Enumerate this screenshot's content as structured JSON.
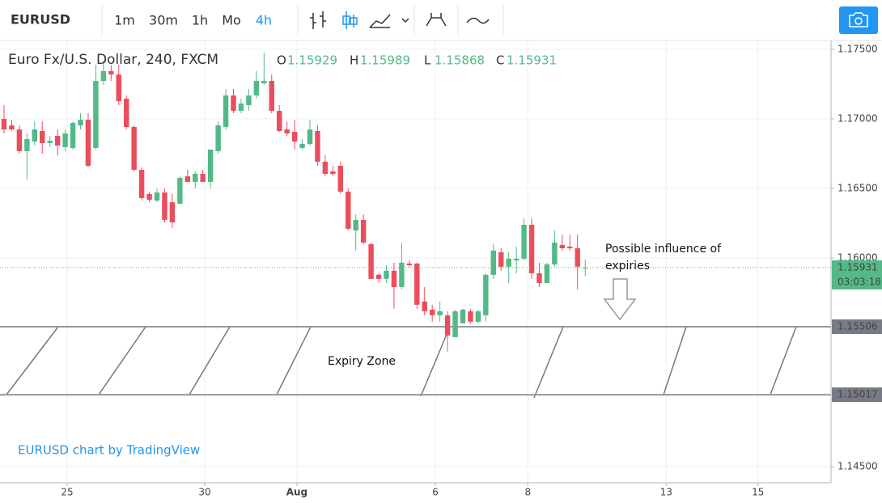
{
  "toolbar": {
    "symbol": "EURUSD",
    "intervals": [
      "1m",
      "30m",
      "1h",
      "Mo",
      "4h"
    ],
    "active": 4
  },
  "chart_data": {
    "type": "candlestick",
    "title": "Euro Fx/U.S. Dollar, 240, FXCM",
    "ohlc": [
      {
        "label": "O",
        "value": 1.15929
      },
      {
        "label": "H",
        "value": 1.15989
      },
      {
        "label": "L",
        "value": 1.15868
      },
      {
        "label": "C",
        "value": 1.15931
      }
    ],
    "up_color": "#53b987",
    "down_color": "#eb4d5c",
    "open": [
      1.17,
      1.16953,
      1.16924,
      1.16768,
      1.16837,
      1.16913,
      1.16826,
      1.16878,
      1.16797,
      1.16791,
      1.16953,
      1.16994,
      1.16791,
      1.17273,
      1.17343,
      1.17319,
      1.17145,
      1.16942,
      1.16634,
      1.1646,
      1.16413,
      1.16471,
      1.16401,
      1.1639,
      1.16587,
      1.16547,
      1.16605,
      1.16547,
      1.16768,
      1.16942,
      1.17168,
      1.17058,
      1.17099,
      1.17168,
      1.17256,
      1.17273,
      1.17058,
      1.16924,
      1.16907,
      1.16791,
      1.1682,
      1.16913,
      1.16692,
      1.16622,
      1.16663,
      1.16477,
      1.16198,
      1.16274,
      1.16099,
      1.15879,
      1.1585,
      1.15908,
      1.15791,
      1.1596,
      1.1596,
      1.15687,
      1.15629,
      1.15588,
      1.15588,
      1.15431,
      1.1553,
      1.15617,
      1.15542,
      1.15588,
      1.15879,
      1.16041,
      1.15937,
      1.15983,
      1.15995,
      1.16239,
      1.1589,
      1.1582,
      1.15954,
      1.16094,
      1.16082,
      1.1607,
      1.15929
    ],
    "high": [
      1.17099,
      1.16994,
      1.16953,
      1.16895,
      1.16982,
      1.16982,
      1.16878,
      1.16924,
      1.16924,
      1.16982,
      1.17041,
      1.17041,
      1.17389,
      1.17418,
      1.17389,
      1.17389,
      1.17168,
      1.16953,
      1.16651,
      1.16477,
      1.165,
      1.165,
      1.1646,
      1.16587,
      1.16634,
      1.16622,
      1.16634,
      1.16779,
      1.16982,
      1.17215,
      1.17215,
      1.17145,
      1.17215,
      1.17343,
      1.17476,
      1.17319,
      1.17099,
      1.16982,
      1.16994,
      1.16855,
      1.16994,
      1.16953,
      1.16738,
      1.16663,
      1.16692,
      1.165,
      1.16314,
      1.16314,
      1.16111,
      1.1589,
      1.15948,
      1.15966,
      1.16111,
      1.15983,
      1.15966,
      1.15791,
      1.15664,
      1.15687,
      1.15617,
      1.15629,
      1.15635,
      1.15635,
      1.15629,
      1.1589,
      1.16099,
      1.1607,
      1.16041,
      1.16082,
      1.16285,
      1.16285,
      1.15966,
      1.15966,
      1.16198,
      1.16169,
      1.16169,
      1.16169,
      1.15989
    ],
    "low": [
      1.16895,
      1.16913,
      1.1675,
      1.16564,
      1.16808,
      1.1675,
      1.16797,
      1.16738,
      1.16768,
      1.16779,
      1.16924,
      1.16651,
      1.16779,
      1.17244,
      1.17273,
      1.17099,
      1.16924,
      1.16622,
      1.16413,
      1.16401,
      1.16401,
      1.16256,
      1.16216,
      1.1639,
      1.16547,
      1.165,
      1.16547,
      1.165,
      1.1675,
      1.16924,
      1.17041,
      1.17041,
      1.17058,
      1.17145,
      1.17244,
      1.17041,
      1.16907,
      1.16878,
      1.16779,
      1.16779,
      1.16808,
      1.16663,
      1.16587,
      1.16587,
      1.1646,
      1.16198,
      1.16053,
      1.16099,
      1.1585,
      1.1582,
      1.1582,
      1.15635,
      1.15774,
      1.15937,
      1.15635,
      1.15588,
      1.15542,
      1.15542,
      1.15327,
      1.15431,
      1.1553,
      1.1553,
      1.1553,
      1.15542,
      1.1585,
      1.15908,
      1.1582,
      1.1589,
      1.15983,
      1.1585,
      1.15791,
      1.1582,
      1.15937,
      1.16053,
      1.16053,
      1.15774,
      1.15868
    ],
    "close": [
      1.16924,
      1.16924,
      1.16768,
      1.16855,
      1.16924,
      1.16826,
      1.16843,
      1.16808,
      1.16895,
      1.16971,
      1.16994,
      1.16663,
      1.17273,
      1.17343,
      1.17319,
      1.17128,
      1.16942,
      1.16634,
      1.16431,
      1.16419,
      1.16471,
      1.16274,
      1.16256,
      1.16576,
      1.16547,
      1.16605,
      1.16547,
      1.16779,
      1.16953,
      1.17168,
      1.17058,
      1.1711,
      1.17168,
      1.17273,
      1.17273,
      1.17058,
      1.16913,
      1.16895,
      1.16837,
      1.1682,
      1.16924,
      1.16692,
      1.16605,
      1.16605,
      1.16477,
      1.1621,
      1.16274,
      1.16111,
      1.1585,
      1.1585,
      1.15908,
      1.15791,
      1.15966,
      1.15948,
      1.15664,
      1.15617,
      1.15588,
      1.15617,
      1.15443,
      1.15617,
      1.15629,
      1.15542,
      1.15617,
      1.15879,
      1.16053,
      1.15937,
      1.15995,
      1.15995,
      1.16239,
      1.1589,
      1.1582,
      1.15954,
      1.16111,
      1.1607,
      1.1607,
      1.15937,
      1.15931
    ],
    "xlim": [
      -0.53,
      108.15
    ],
    "xticks": [
      {
        "value": 8.25,
        "label": "25"
      },
      {
        "value": 26.24,
        "label": "30"
      },
      {
        "value": 38.3,
        "label": "Aug"
      },
      {
        "value": 56.4,
        "label": "6"
      },
      {
        "value": 68.5,
        "label": "8"
      },
      {
        "value": 86.6,
        "label": "13"
      },
      {
        "value": 98.6,
        "label": "15"
      }
    ],
    "ylim": [
      1.14384,
      1.17564
    ],
    "yticks": [
      {
        "value": 1.175,
        "label": "1.17500"
      },
      {
        "value": 1.17,
        "label": "1.17000"
      },
      {
        "value": 1.165,
        "label": "1.16500"
      },
      {
        "value": 1.16,
        "label": "1.16000"
      },
      {
        "value": 1.145,
        "label": "1.14500"
      }
    ],
    "grid": true,
    "last": {
      "value": 1.15931,
      "countdown": "03:03:18"
    },
    "hlines": [
      1.15506,
      1.15017
    ],
    "annotations": [
      [
        "Possible influence of",
        "expiries"
      ],
      [
        "Expiry Zone"
      ]
    ],
    "watermark": "EURUSD chart by TradingView"
  }
}
